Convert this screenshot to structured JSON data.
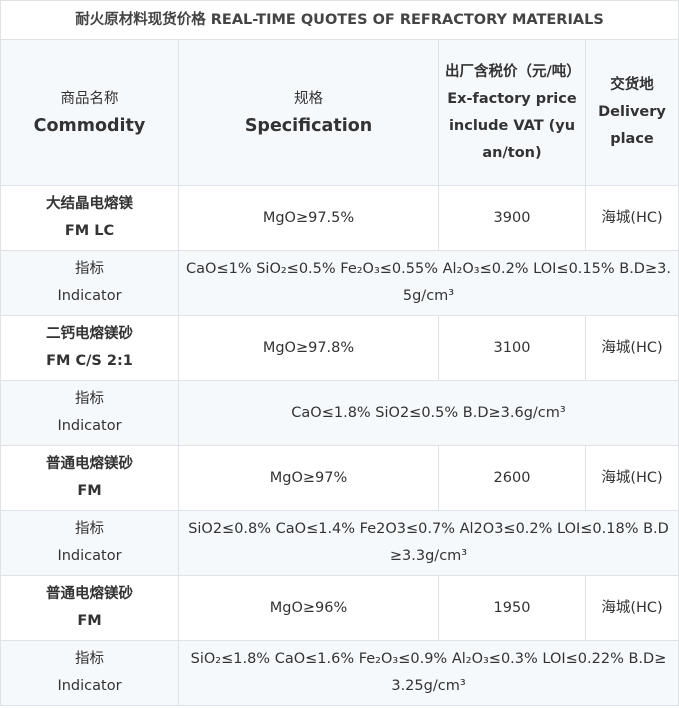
{
  "title": "耐火原材料现货价格 REAL-TIME QUOTES OF REFRACTORY MATERIALS",
  "headers": {
    "commodity_cn": "商品名称",
    "commodity_en": "Commodity",
    "spec_cn": "规格",
    "spec_en": "Specification",
    "price_cn": "出厂含税价（元/吨）",
    "price_en": "Ex-factory price include VAT (yuan/ton)",
    "place_cn": "交货地",
    "place_en": "Delivery place"
  },
  "indicator_label_cn": "指标",
  "indicator_label_en": "Indicator",
  "products": [
    {
      "name_cn": "大结晶电熔镁",
      "name_en": "FM LC",
      "spec": "MgO≥97.5%",
      "price": "3900",
      "place": "海城(HC)",
      "indicator": "CaO≤1% SiO₂≤0.5% Fe₂O₃≤0.55% Al₂O₃≤0.2% LOI≤0.15% B.D≥3.5g/cm³"
    },
    {
      "name_cn": "二钙电熔镁砂",
      "name_en": "FM C/S 2:1",
      "spec": "MgO≥97.8%",
      "price": "3100",
      "place": "海城(HC)",
      "indicator": "CaO≤1.8% SiO2≤0.5% B.D≥3.6g/cm³"
    },
    {
      "name_cn": "普通电熔镁砂",
      "name_en": "FM",
      "spec": "MgO≥97%",
      "price": "2600",
      "place": "海城(HC)",
      "indicator": "SiO2≤0.8% CaO≤1.4% Fe2O3≤0.7% Al2O3≤0.2% LOI≤0.18% B.D≥3.3g/cm³"
    },
    {
      "name_cn": "普通电熔镁砂",
      "name_en": "FM",
      "spec": "MgO≥96%",
      "price": "1950",
      "place": "海城(HC)",
      "indicator": "SiO₂≤1.8% CaO≤1.6% Fe₂O₃≤0.9% Al₂O₃≤0.3% LOI≤0.22% B.D≥3.25g/cm³"
    }
  ]
}
